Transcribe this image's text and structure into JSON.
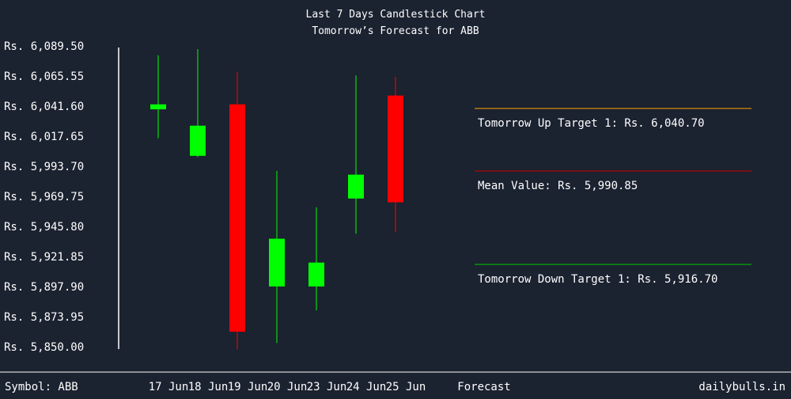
{
  "chart_data": {
    "type": "candlestick",
    "title": "Last 7 Days Candlestick Chart",
    "subtitle": "Tomorrow’s Forecast for ABB",
    "currency_prefix": "Rs.",
    "y_ticks": [
      "Rs. 6,089.50",
      "Rs. 6,065.55",
      "Rs. 6,041.60",
      "Rs. 6,017.65",
      "Rs. 5,993.70",
      "Rs. 5,969.75",
      "Rs. 5,945.80",
      "Rs. 5,921.85",
      "Rs. 5,897.90",
      "Rs. 5,873.95",
      "Rs. 5,850.00"
    ],
    "ylim": [
      5850.0,
      6089.5
    ],
    "categories": [
      "17 Jun",
      "18 Jun",
      "19 Jun",
      "20 Jun",
      "23 Jun",
      "24 Jun",
      "25 Jun"
    ],
    "candles": [
      {
        "date": "17 Jun",
        "open": 6039.0,
        "close": 6043.0,
        "high": 6082.0,
        "low": 6016.0
      },
      {
        "date": "18 Jun",
        "open": 6002.0,
        "close": 6026.0,
        "high": 6087.0,
        "low": 6001.0
      },
      {
        "date": "19 Jun",
        "open": 6043.0,
        "close": 5862.0,
        "high": 6069.0,
        "low": 5848.0
      },
      {
        "date": "20 Jun",
        "open": 5898.0,
        "close": 5936.0,
        "high": 5990.0,
        "low": 5853.0
      },
      {
        "date": "23 Jun",
        "open": 5898.0,
        "close": 5917.0,
        "high": 5961.0,
        "low": 5879.0
      },
      {
        "date": "24 Jun",
        "open": 5968.0,
        "close": 5987.0,
        "high": 6066.0,
        "low": 5940.0
      },
      {
        "date": "25 Jun",
        "open": 6050.0,
        "close": 5965.0,
        "high": 6065.0,
        "low": 5941.0
      }
    ],
    "forecast_label": "Forecast",
    "targets": [
      {
        "label": "Tomorrow Up Target 1: Rs. 6,040.70",
        "color": "#ffa500"
      },
      {
        "label": "Mean Value: Rs. 5,990.85",
        "color": "#cc0000"
      },
      {
        "label": "Tomorrow Down Target 1: Rs. 5,916.70",
        "color": "#00cc00"
      }
    ],
    "colors": {
      "up": "#00ff00",
      "down": "#ff0000",
      "background": "#1b2230",
      "text": "#ffffff"
    }
  },
  "footer": {
    "symbol": "Symbol: ABB",
    "site": "dailybulls.in"
  }
}
